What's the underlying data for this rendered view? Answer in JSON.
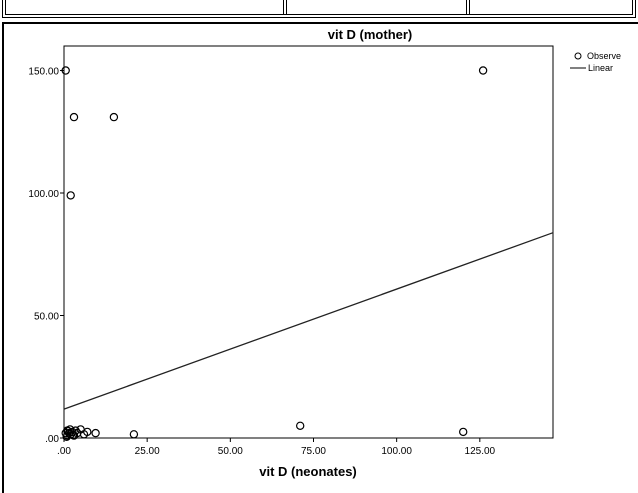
{
  "chart_data": {
    "type": "scatter",
    "title": "vit D (mother)",
    "xlabel": "vit D (neonates)",
    "ylabel": "",
    "xlim": [
      0,
      147
    ],
    "ylim": [
      0,
      160
    ],
    "x_ticks": [
      0,
      25,
      50,
      75,
      100,
      125
    ],
    "x_tick_labels": [
      ".00",
      "25.00",
      "50.00",
      "75.00",
      "100.00",
      "125.00"
    ],
    "y_ticks": [
      0,
      50,
      100,
      150
    ],
    "y_tick_labels": [
      ".00",
      "50.00",
      "100.00",
      "150.00"
    ],
    "legend": {
      "placement": "right",
      "items": [
        {
          "label": "Observe",
          "marker": "circle"
        },
        {
          "label": "Linear",
          "marker": "line"
        }
      ]
    },
    "series": [
      {
        "name": "Observed",
        "style": "marker",
        "points": [
          [
            0.5,
            150
          ],
          [
            3,
            131
          ],
          [
            15,
            131
          ],
          [
            2,
            99
          ],
          [
            126,
            150
          ],
          [
            71,
            5
          ],
          [
            120,
            2.5
          ],
          [
            21,
            1.5
          ],
          [
            9.5,
            2
          ],
          [
            7,
            2.5
          ],
          [
            5,
            3.5
          ],
          [
            3.5,
            3
          ],
          [
            1,
            3
          ],
          [
            1.5,
            2
          ],
          [
            1,
            1
          ],
          [
            2,
            1.5
          ],
          [
            2.5,
            2.5
          ],
          [
            4,
            2
          ],
          [
            3,
            1
          ],
          [
            0.5,
            2
          ],
          [
            1.8,
            3.5
          ],
          [
            2.7,
            1.2
          ],
          [
            1.2,
            2.8
          ],
          [
            6,
            1.5
          ],
          [
            0.8,
            0.5
          ]
        ]
      },
      {
        "name": "Linear",
        "style": "line",
        "points": [
          [
            0,
            11.8
          ],
          [
            147,
            83.8
          ]
        ]
      }
    ],
    "grid": false
  }
}
